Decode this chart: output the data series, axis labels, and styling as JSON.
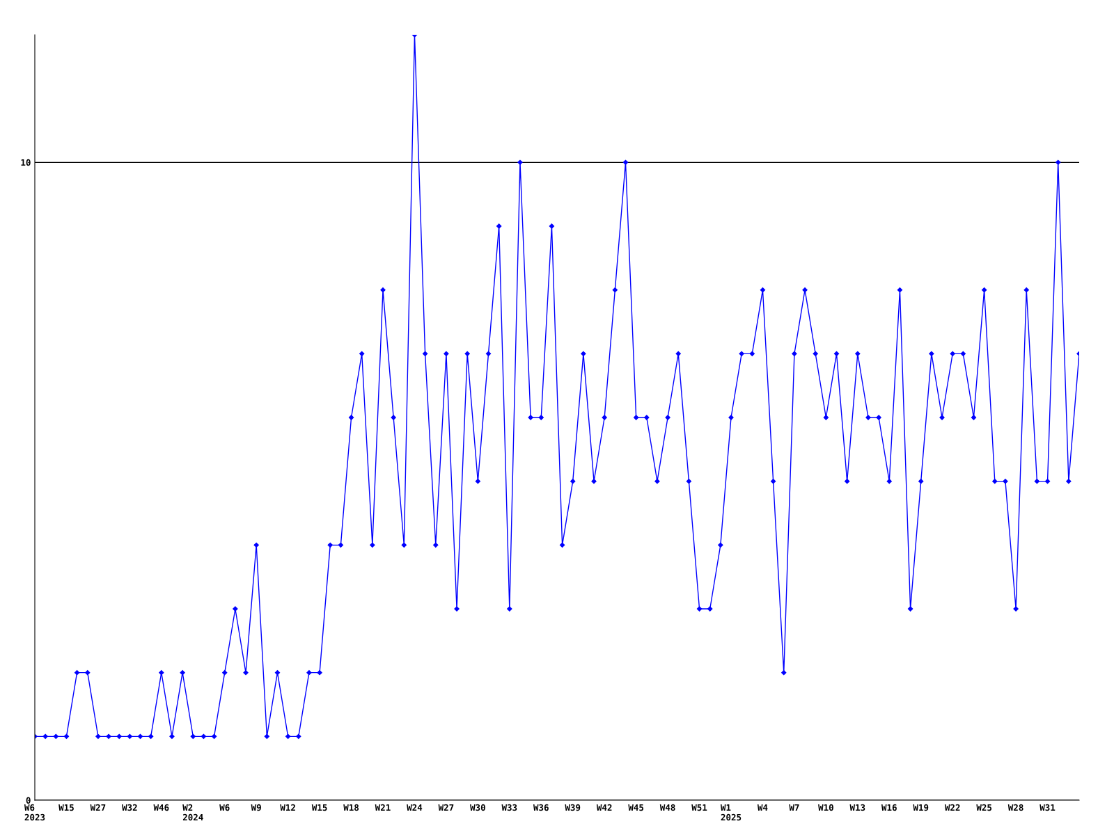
{
  "chart_data": {
    "type": "line",
    "categories": [
      "W6\n2023",
      null,
      null,
      "W15",
      null,
      null,
      "W27",
      null,
      null,
      "W32",
      null,
      null,
      "W46",
      null,
      null,
      "W2\n2024",
      null,
      null,
      "W6",
      null,
      null,
      "W9",
      null,
      null,
      "W12",
      null,
      null,
      "W15",
      null,
      null,
      "W18",
      null,
      null,
      "W21",
      null,
      null,
      "W24",
      null,
      null,
      "W27",
      null,
      null,
      "W30",
      null,
      null,
      "W33",
      null,
      null,
      "W36",
      null,
      null,
      "W39",
      null,
      null,
      "W42",
      null,
      null,
      "W45",
      null,
      null,
      "W48",
      null,
      null,
      "W51",
      null,
      null,
      "W1\n2025",
      null,
      null,
      "W4",
      null,
      null,
      "W7",
      null,
      null,
      "W10",
      null,
      null,
      "W13",
      null,
      null,
      "W16",
      null,
      null,
      "W19",
      null,
      null,
      "W22",
      null,
      null,
      "W25",
      null,
      null,
      "W28",
      null,
      null,
      "W31",
      null,
      null,
      null
    ],
    "series": [
      {
        "color": "#0000ff",
        "values": [
          1,
          1,
          1,
          1,
          2,
          2,
          1,
          1,
          1,
          1,
          1,
          1,
          2,
          1,
          2,
          1,
          1,
          1,
          2,
          3,
          2,
          4,
          1,
          2,
          1,
          1,
          2,
          2,
          4,
          4,
          6,
          7,
          4,
          8,
          6,
          4,
          12,
          7,
          4,
          7,
          3,
          7,
          5,
          7,
          9,
          3,
          10,
          6,
          6,
          9,
          4,
          5,
          7,
          5,
          6,
          8,
          10,
          6,
          6,
          5,
          6,
          7,
          5,
          3,
          3,
          4,
          6,
          7,
          7,
          8,
          5,
          2,
          7,
          8,
          7,
          6,
          7,
          5,
          7,
          6,
          6,
          5,
          8,
          3,
          5,
          7,
          6,
          7,
          7,
          6,
          8,
          5,
          5,
          3,
          8,
          5,
          5,
          10,
          5,
          7
        ]
      }
    ],
    "ylim": [
      0,
      12
    ],
    "yticks": [
      0,
      10
    ],
    "grid": "y",
    "marker": "diamond",
    "line_style": "solid"
  }
}
